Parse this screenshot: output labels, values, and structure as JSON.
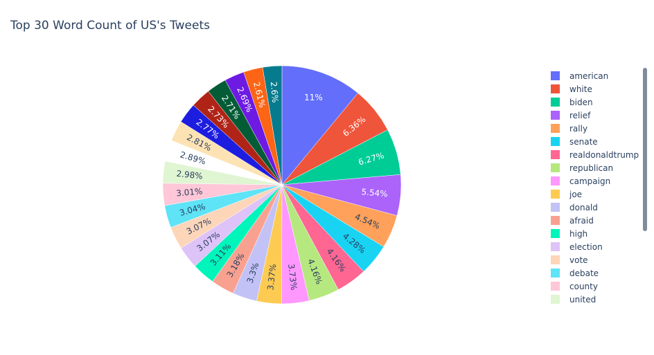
{
  "title": "Top 30 Word Count of US's Tweets",
  "chart_data": {
    "type": "pie",
    "title": "Top 30 Word Count of US's Tweets",
    "direction": "clockwise",
    "legend_placement": "right",
    "slices": [
      {
        "label": "american",
        "percent": 11,
        "text": "11%",
        "color": "#636efa"
      },
      {
        "label": "white",
        "percent": 6.36,
        "text": "6.36%",
        "color": "#EF553B"
      },
      {
        "label": "biden",
        "percent": 6.27,
        "text": "6.27%",
        "color": "#00cc96"
      },
      {
        "label": "relief",
        "percent": 5.54,
        "text": "5.54%",
        "color": "#ab63fa"
      },
      {
        "label": "rally",
        "percent": 4.54,
        "text": "4.54%",
        "color": "#FFA15A"
      },
      {
        "label": "senate",
        "percent": 4.28,
        "text": "4.28%",
        "color": "#19d3f3"
      },
      {
        "label": "realdonaldtrump",
        "percent": 4.16,
        "text": "4.16%",
        "color": "#FF6692"
      },
      {
        "label": "republican",
        "percent": 4.16,
        "text": "4.16%",
        "color": "#B6E880"
      },
      {
        "label": "campaign",
        "percent": 3.73,
        "text": "3.73%",
        "color": "#FF97FF"
      },
      {
        "label": "joe",
        "percent": 3.37,
        "text": "3.37%",
        "color": "#FECB52"
      },
      {
        "label": "donald",
        "percent": 3.3,
        "text": "3.3%",
        "color": "#c2c2f6"
      },
      {
        "label": "afraid",
        "percent": 3.18,
        "text": "3.18%",
        "color": "#f9a190"
      },
      {
        "label": "high",
        "percent": 3.11,
        "text": "3.11%",
        "color": "#00f5bb"
      },
      {
        "label": "election",
        "percent": 3.07,
        "text": "3.07%",
        "color": "#ddc3f8"
      },
      {
        "label": "vote",
        "percent": 3.07,
        "text": "3.07%",
        "color": "#fdd5b8"
      },
      {
        "label": "debate",
        "percent": 3.04,
        "text": "3.04%",
        "color": "#5fe3f6"
      },
      {
        "label": "county",
        "percent": 3.01,
        "text": "3.01%",
        "color": "#ffc7d8"
      },
      {
        "label": "united",
        "percent": 2.98,
        "text": "2.98%",
        "color": "#e0f5d2"
      },
      {
        "label": "",
        "percent": 2.89,
        "text": "2.89%",
        "color": "#ffffff"
      },
      {
        "label": "",
        "percent": 2.81,
        "text": "2.81%",
        "color": "#fde3b4"
      },
      {
        "label": "",
        "percent": 2.77,
        "text": "2.77%",
        "color": "#1d1de0"
      },
      {
        "label": "",
        "percent": 2.73,
        "text": "2.73%",
        "color": "#b02418"
      },
      {
        "label": "",
        "percent": 2.71,
        "text": "2.71%",
        "color": "#045c37"
      },
      {
        "label": "",
        "percent": 2.69,
        "text": "2.69%",
        "color": "#6d1ae3"
      },
      {
        "label": "",
        "percent": 2.61,
        "text": "2.61%",
        "color": "#fc6416"
      },
      {
        "label": "",
        "percent": 2.6,
        "text": "2.6%",
        "color": "#077b8e"
      }
    ],
    "legend": [
      "american",
      "white",
      "biden",
      "relief",
      "rally",
      "senate",
      "realdonaldtrump",
      "republican",
      "campaign",
      "joe",
      "donald",
      "afraid",
      "high",
      "election",
      "vote",
      "debate",
      "county",
      "united"
    ]
  }
}
